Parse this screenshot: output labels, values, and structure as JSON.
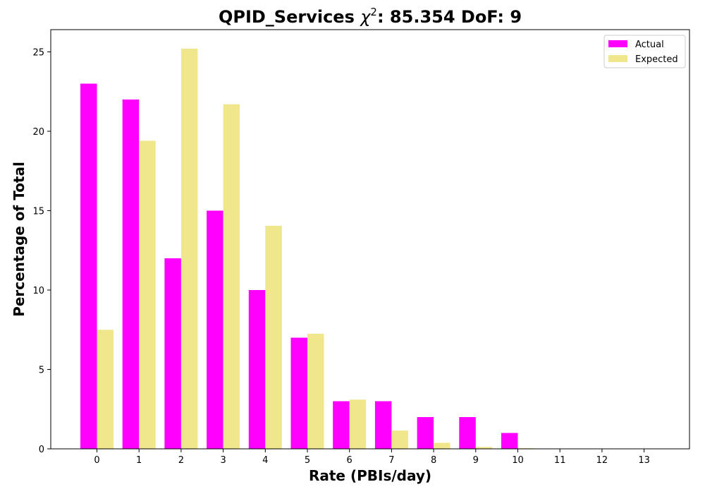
{
  "chart_data": {
    "type": "bar",
    "title_prefix": "QPID_Services ",
    "title_chi": "χ",
    "title_sup": "2",
    "title_suffix": ": 85.354 DoF: 9",
    "xlabel": "Rate (PBIs/day)",
    "ylabel": "Percentage of Total",
    "categories": [
      "0",
      "1",
      "2",
      "3",
      "4",
      "5",
      "6",
      "7",
      "8",
      "9",
      "10",
      "11",
      "12",
      "13"
    ],
    "ylim": [
      0,
      26.4
    ],
    "yticks": [
      0,
      5,
      10,
      15,
      20,
      25
    ],
    "series": [
      {
        "name": "Actual",
        "color": "#ff00ff",
        "values": [
          23,
          22,
          12,
          15,
          10,
          7,
          3,
          3,
          2,
          2,
          1,
          0,
          0,
          0
        ]
      },
      {
        "name": "Expected",
        "color": "#f0e68c",
        "values": [
          7.5,
          19.4,
          25.2,
          21.7,
          14.05,
          7.25,
          3.1,
          1.15,
          0.38,
          0.12,
          0.04,
          0.01,
          0,
          0
        ]
      }
    ],
    "legend_position": "top-right",
    "grid": false
  }
}
